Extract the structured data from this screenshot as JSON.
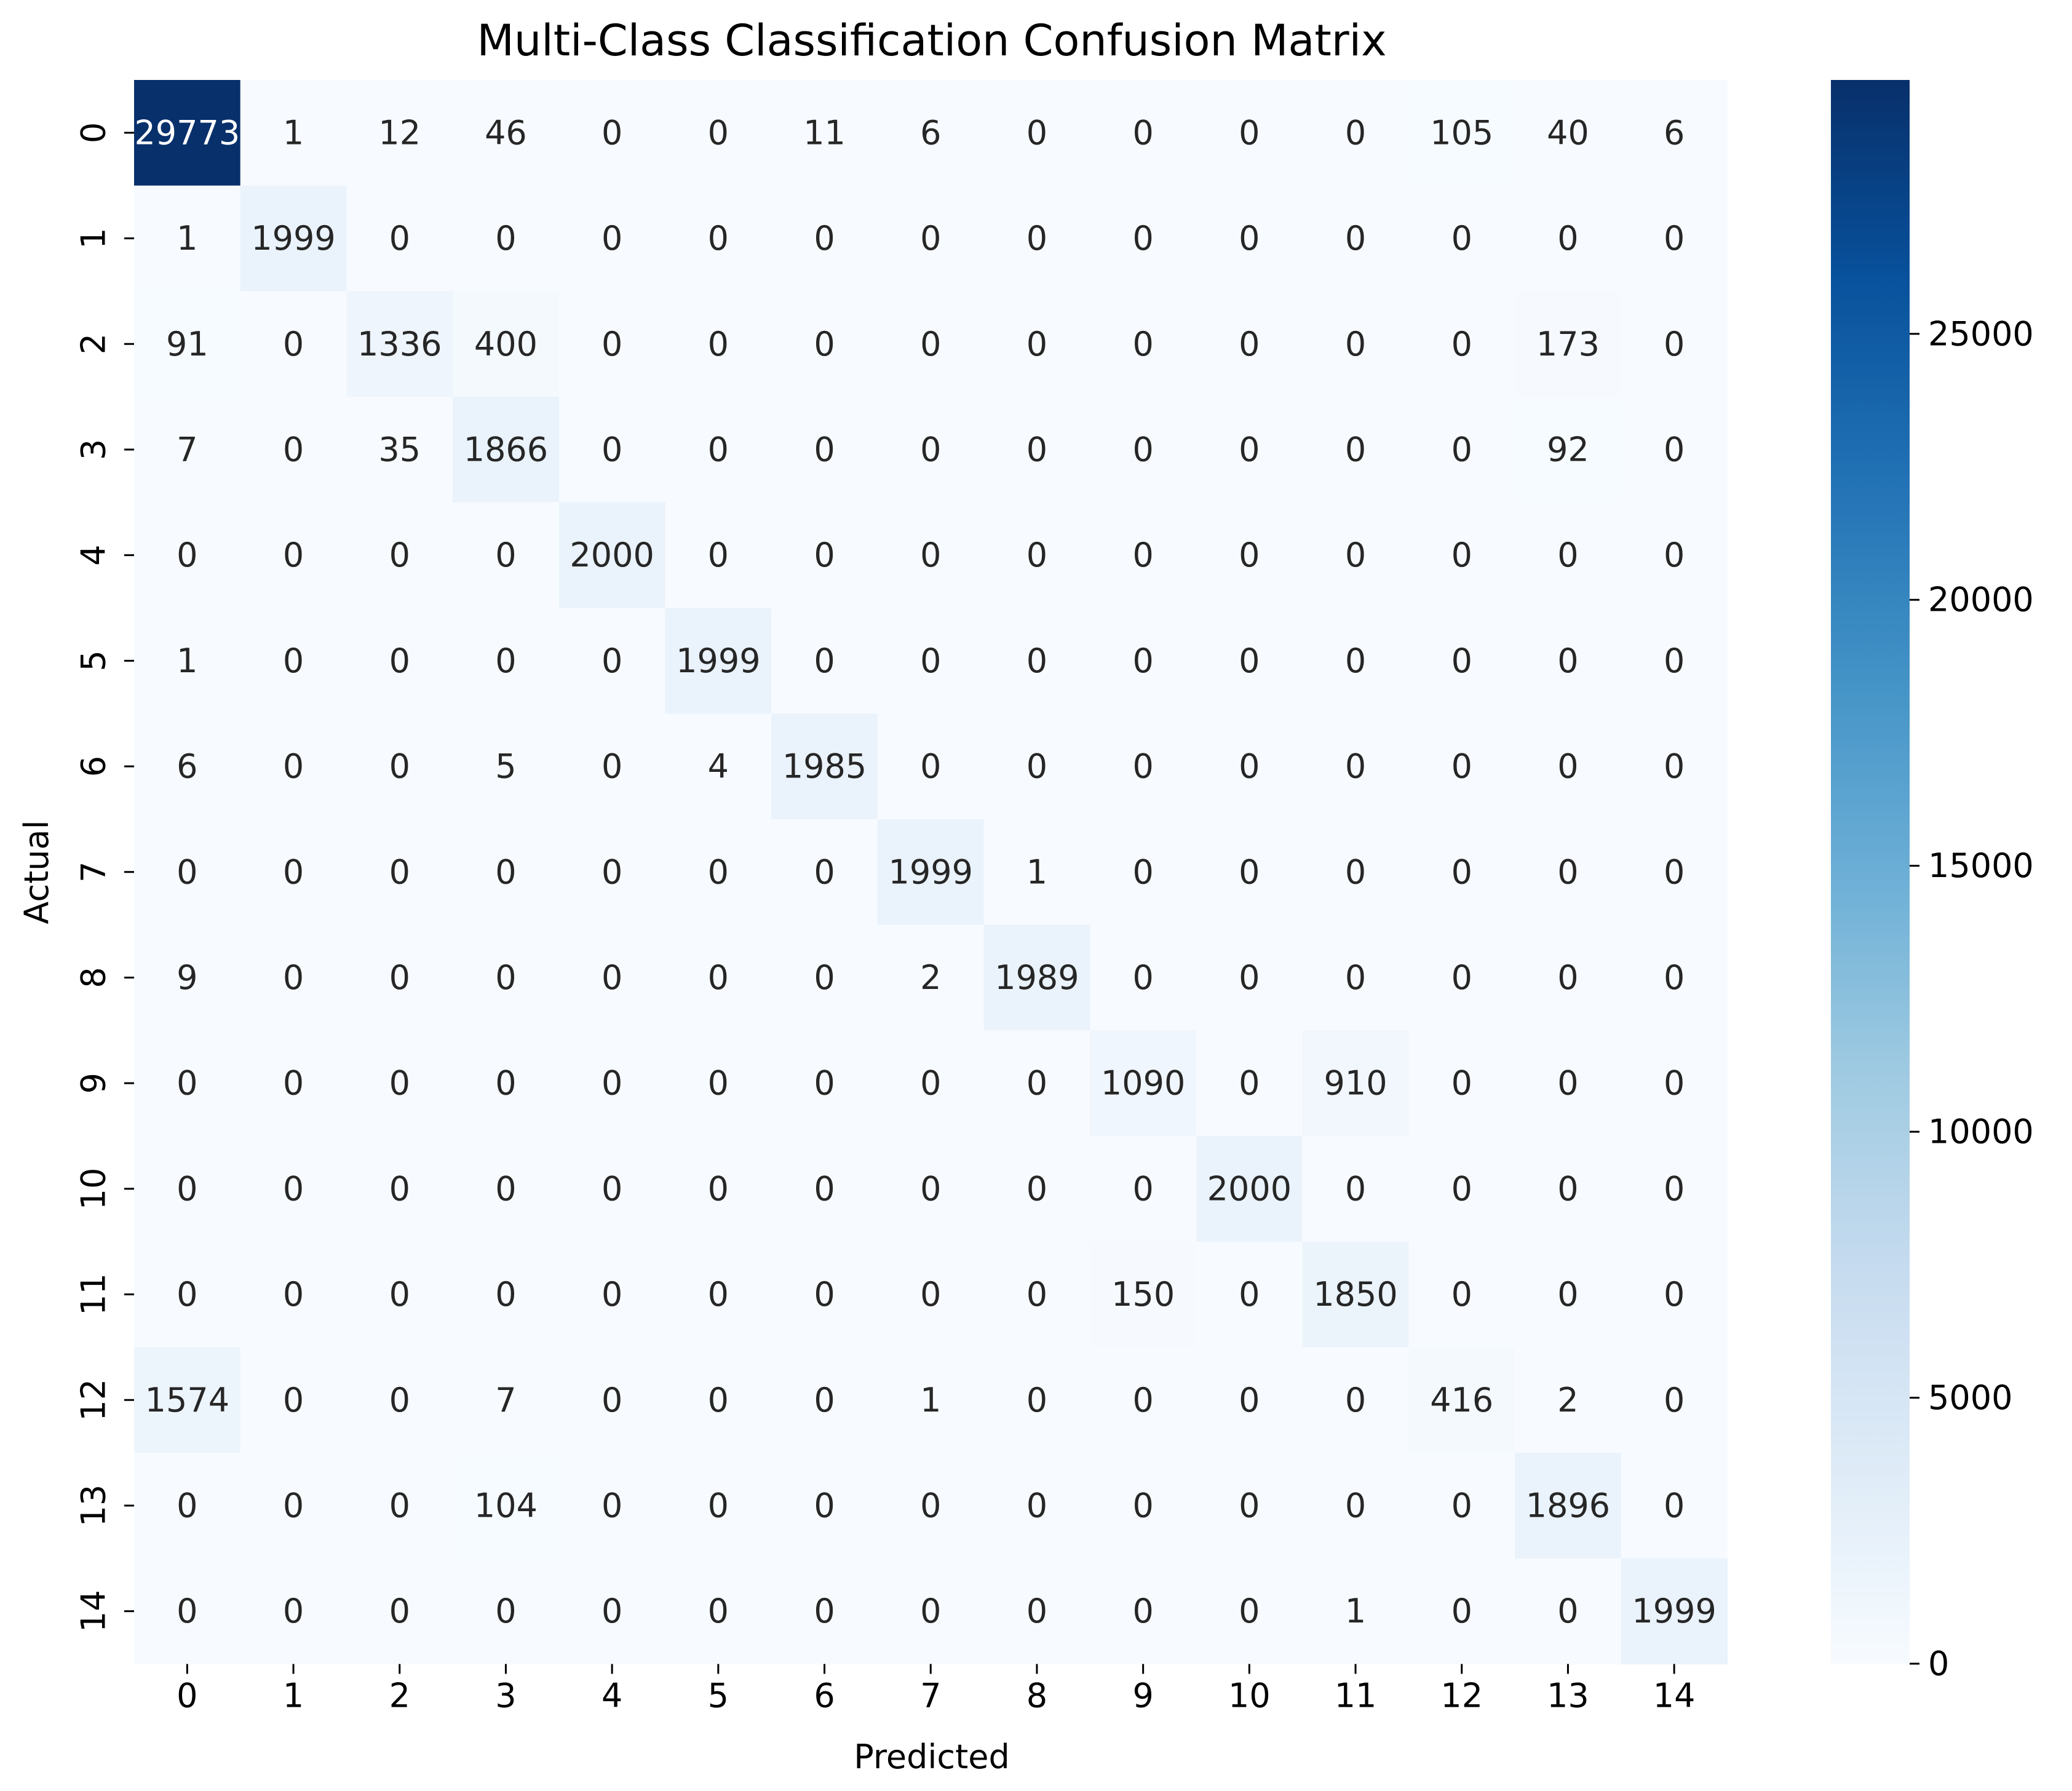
{
  "chart_data": {
    "type": "heatmap",
    "title": "Multi-Class Classification Confusion Matrix",
    "xlabel": "Predicted",
    "ylabel": "Actual",
    "x_categories": [
      "0",
      "1",
      "2",
      "3",
      "4",
      "5",
      "6",
      "7",
      "8",
      "9",
      "10",
      "11",
      "12",
      "13",
      "14"
    ],
    "y_categories": [
      "0",
      "1",
      "2",
      "3",
      "4",
      "5",
      "6",
      "7",
      "8",
      "9",
      "10",
      "11",
      "12",
      "13",
      "14"
    ],
    "matrix": [
      [
        29773,
        1,
        12,
        46,
        0,
        0,
        11,
        6,
        0,
        0,
        0,
        0,
        105,
        40,
        6
      ],
      [
        1,
        1999,
        0,
        0,
        0,
        0,
        0,
        0,
        0,
        0,
        0,
        0,
        0,
        0,
        0
      ],
      [
        91,
        0,
        1336,
        400,
        0,
        0,
        0,
        0,
        0,
        0,
        0,
        0,
        0,
        173,
        0
      ],
      [
        7,
        0,
        35,
        1866,
        0,
        0,
        0,
        0,
        0,
        0,
        0,
        0,
        0,
        92,
        0
      ],
      [
        0,
        0,
        0,
        0,
        2000,
        0,
        0,
        0,
        0,
        0,
        0,
        0,
        0,
        0,
        0
      ],
      [
        1,
        0,
        0,
        0,
        0,
        1999,
        0,
        0,
        0,
        0,
        0,
        0,
        0,
        0,
        0
      ],
      [
        6,
        0,
        0,
        5,
        0,
        4,
        1985,
        0,
        0,
        0,
        0,
        0,
        0,
        0,
        0
      ],
      [
        0,
        0,
        0,
        0,
        0,
        0,
        0,
        1999,
        1,
        0,
        0,
        0,
        0,
        0,
        0
      ],
      [
        9,
        0,
        0,
        0,
        0,
        0,
        0,
        2,
        1989,
        0,
        0,
        0,
        0,
        0,
        0
      ],
      [
        0,
        0,
        0,
        0,
        0,
        0,
        0,
        0,
        0,
        1090,
        0,
        910,
        0,
        0,
        0
      ],
      [
        0,
        0,
        0,
        0,
        0,
        0,
        0,
        0,
        0,
        0,
        2000,
        0,
        0,
        0,
        0
      ],
      [
        0,
        0,
        0,
        0,
        0,
        0,
        0,
        0,
        0,
        150,
        0,
        1850,
        0,
        0,
        0
      ],
      [
        1574,
        0,
        0,
        7,
        0,
        0,
        0,
        1,
        0,
        0,
        0,
        0,
        416,
        2,
        0
      ],
      [
        0,
        0,
        0,
        104,
        0,
        0,
        0,
        0,
        0,
        0,
        0,
        0,
        0,
        1896,
        0
      ],
      [
        0,
        0,
        0,
        0,
        0,
        0,
        0,
        0,
        0,
        0,
        0,
        1,
        0,
        0,
        1999
      ]
    ],
    "colorbar": {
      "colormap": "Blues",
      "range": [
        0,
        29773
      ],
      "ticks": [
        0,
        5000,
        10000,
        15000,
        20000,
        25000
      ]
    },
    "grid": false
  }
}
